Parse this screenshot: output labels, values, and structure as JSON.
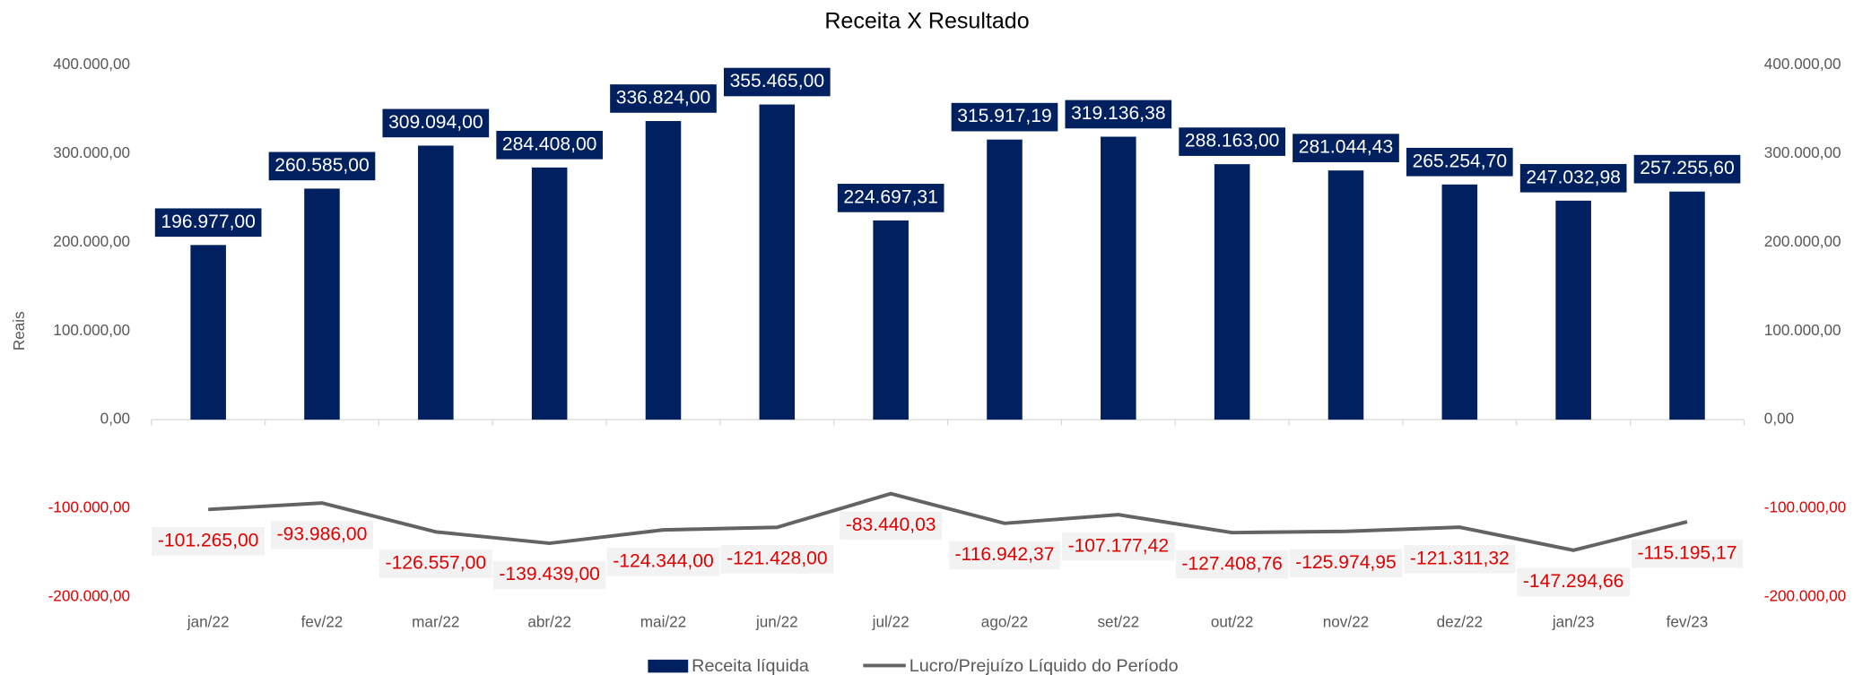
{
  "chart_data": {
    "type": "bar",
    "title": "Receita X Resultado",
    "y_label": "Reais",
    "categories": [
      "jan/22",
      "fev/22",
      "mar/22",
      "abr/22",
      "mai/22",
      "jun/22",
      "jul/22",
      "ago/22",
      "set/22",
      "out/22",
      "nov/22",
      "dez/22",
      "jan/23",
      "fev/23"
    ],
    "series": [
      {
        "name": "Receita líquida",
        "color": "#002060",
        "type": "bar",
        "values": [
          196977,
          260585,
          309094,
          284408,
          336824,
          355465,
          224697.31,
          315917.19,
          319136.38,
          288163,
          281044.43,
          265254.7,
          247032.98,
          257255.6
        ],
        "value_labels": [
          "196.977,00",
          "260.585,00",
          "309.094,00",
          "284.408,00",
          "336.824,00",
          "355.465,00",
          "224.697,31",
          "315.917,19",
          "319.136,38",
          "288.163,00",
          "281.044,43",
          "265.254,70",
          "247.032,98",
          "257.255,60"
        ]
      },
      {
        "name": "Lucro/Prejuízo Líquido do Período",
        "color": "#636363",
        "type": "line",
        "axis": "y2",
        "values": [
          -101265,
          -93986,
          -126557,
          -139439,
          -124344,
          -121428,
          -83440.03,
          -116942.37,
          -107177.42,
          -127408.76,
          -125974.95,
          -121311.32,
          -147294.66,
          -115195.17
        ],
        "value_labels": [
          "-101.265,00",
          "-93.986,00",
          "-126.557,00",
          "-139.439,00",
          "-124.344,00",
          "-121.428,00",
          "-83.440,03",
          "-116.942,37",
          "-107.177,42",
          "-127.408,76",
          "-125.974,95",
          "-121.311,32",
          "-147.294,66",
          "-115.195,17"
        ]
      }
    ],
    "ylim": [
      -200000,
      400000
    ],
    "yticks": [
      {
        "value": -200000,
        "label": "-200.000,00"
      },
      {
        "value": -100000,
        "label": "-100.000,00"
      },
      {
        "value": 0,
        "label": "0,00"
      },
      {
        "value": 100000,
        "label": "100.000,00"
      },
      {
        "value": 200000,
        "label": "200.000,00"
      },
      {
        "value": 300000,
        "label": "300.000,00"
      },
      {
        "value": 400000,
        "label": "400.000,00"
      }
    ],
    "y2lim": [
      -200000,
      400000
    ],
    "y2ticks": [
      {
        "value": -200000,
        "label": "-200.000,00"
      },
      {
        "value": -100000,
        "label": "-100.000,00"
      },
      {
        "value": 0,
        "label": "0,00"
      },
      {
        "value": 100000,
        "label": "100.000,00"
      },
      {
        "value": 200000,
        "label": "200.000,00"
      },
      {
        "value": 300000,
        "label": "300.000,00"
      },
      {
        "value": 400000,
        "label": "400.000,00"
      }
    ]
  }
}
